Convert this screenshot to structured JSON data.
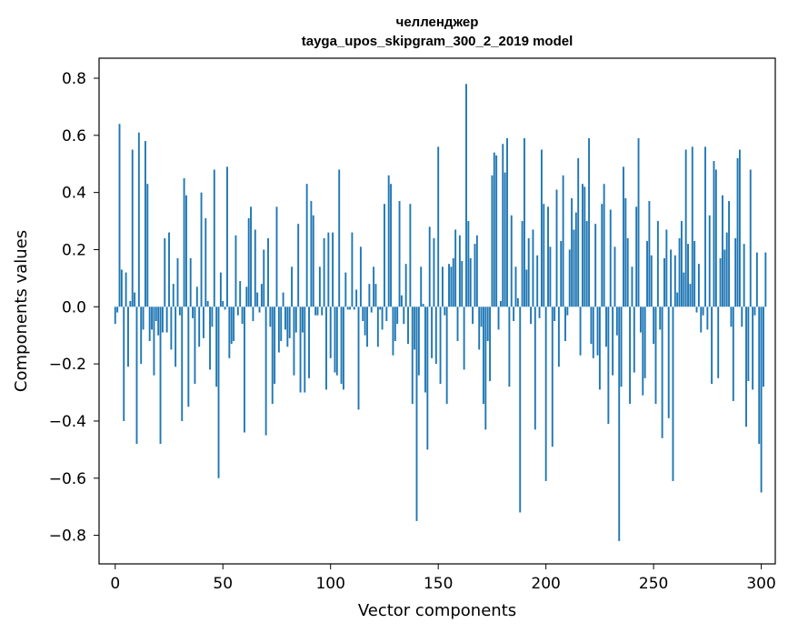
{
  "chart_data": {
    "type": "bar",
    "title": "челленджер",
    "subtitle": "tayga_upos_skipgram_300_2_2019 model",
    "xlabel": "Vector components",
    "ylabel": "Components values",
    "xlim": [
      -7.5,
      306.5
    ],
    "ylim": [
      -0.9,
      0.87
    ],
    "xticks": [
      0,
      50,
      100,
      150,
      200,
      250,
      300
    ],
    "xtick_labels": [
      "0",
      "50",
      "100",
      "150",
      "200",
      "250",
      "300"
    ],
    "yticks": [
      -0.8,
      -0.6,
      -0.4,
      -0.2,
      0.0,
      0.2,
      0.4,
      0.6,
      0.8
    ],
    "ytick_labels": [
      "−0.8",
      "−0.6",
      "−0.4",
      "−0.2",
      "0.0",
      "0.2",
      "0.4",
      "0.6",
      "0.8"
    ],
    "bar_color": "#1f77b4",
    "grid": false,
    "values": [
      -0.06,
      -0.02,
      0.64,
      0.13,
      -0.4,
      0.12,
      -0.21,
      0.02,
      0.55,
      0.05,
      -0.48,
      0.61,
      -0.2,
      -0.08,
      0.58,
      0.43,
      -0.12,
      -0.08,
      -0.24,
      -0.05,
      -0.1,
      -0.48,
      -0.09,
      0.24,
      -0.09,
      0.26,
      -0.15,
      0.08,
      -0.21,
      0.17,
      -0.03,
      -0.4,
      0.45,
      0.39,
      -0.35,
      0.17,
      -0.04,
      -0.27,
      0.07,
      -0.14,
      0.4,
      -0.11,
      0.31,
      0.02,
      -0.22,
      -0.07,
      0.48,
      -0.28,
      -0.6,
      0.12,
      0.02,
      -0.01,
      0.49,
      -0.18,
      -0.13,
      -0.12,
      0.25,
      -0.03,
      0.09,
      -0.06,
      -0.44,
      0.07,
      0.31,
      0.35,
      -0.05,
      0.27,
      0.05,
      -0.02,
      0.08,
      0.2,
      -0.45,
      0.24,
      -0.07,
      -0.34,
      -0.27,
      0.35,
      -0.16,
      -0.12,
      0.05,
      -0.08,
      -0.14,
      -0.11,
      0.14,
      -0.24,
      -0.09,
      0.29,
      -0.3,
      -0.09,
      -0.3,
      0.43,
      -0.25,
      0.37,
      0.32,
      -0.03,
      -0.03,
      0.14,
      -0.03,
      0.24,
      -0.29,
      0.26,
      -0.18,
      0.26,
      -0.23,
      -0.24,
      0.48,
      -0.27,
      -0.29,
      0.12,
      -0.01,
      -0.01,
      0.26,
      -0.01,
      0.06,
      -0.36,
      0.21,
      -0.05,
      -0.1,
      -0.14,
      0.08,
      -0.02,
      0.14,
      0.08,
      -0.14,
      -0.01,
      -0.08,
      0.36,
      -0.05,
      0.46,
      0.43,
      -0.17,
      -0.12,
      -0.06,
      0.37,
      0.04,
      -0.06,
      0.15,
      -0.13,
      0.36,
      -0.34,
      -0.15,
      -0.75,
      -0.24,
      0.14,
      0.01,
      -0.3,
      -0.5,
      0.28,
      -0.18,
      0.24,
      -0.2,
      0.56,
      -0.27,
      0.14,
      -0.03,
      -0.34,
      0.15,
      0.14,
      0.17,
      0.27,
      -0.12,
      0.25,
      0.16,
      -0.22,
      0.78,
      0.3,
      0.17,
      -0.06,
      0.22,
      0.25,
      -0.15,
      -0.07,
      -0.34,
      -0.43,
      -0.12,
      -0.26,
      0.46,
      0.54,
      0.53,
      -0.08,
      0.02,
      0.57,
      0.47,
      0.59,
      -0.28,
      0.32,
      -0.05,
      0.14,
      0.03,
      -0.72,
      0.3,
      0.59,
      0.13,
      0.24,
      -0.06,
      0.27,
      -0.43,
      0.18,
      -0.04,
      0.55,
      0.36,
      -0.61,
      0.35,
      0.21,
      -0.49,
      -0.05,
      0.41,
      -0.21,
      0.23,
      0.46,
      -0.12,
      -0.03,
      0.2,
      0.38,
      0.27,
      0.33,
      0.52,
      -0.17,
      0.43,
      0.42,
      0.3,
      0.59,
      -0.13,
      -0.18,
      0.29,
      -0.17,
      -0.29,
      0.36,
      0.43,
      -0.14,
      -0.41,
      0.34,
      -0.24,
      0.21,
      -0.1,
      -0.82,
      -0.28,
      0.49,
      0.38,
      0.24,
      -0.34,
      0.14,
      -0.23,
      0.35,
      0.59,
      -0.09,
      -0.31,
      -0.25,
      0.23,
      0.37,
      0.18,
      -0.13,
      -0.34,
      0.3,
      -0.08,
      -0.46,
      0.17,
      0.27,
      -0.39,
      0.2,
      -0.61,
      0.18,
      0.05,
      0.24,
      0.3,
      0.12,
      0.55,
      0.22,
      0.08,
      0.56,
      0.23,
      -0.02,
      0.15,
      -0.09,
      -0.03,
      0.56,
      -0.08,
      0.32,
      -0.27,
      0.51,
      0.48,
      -0.25,
      0.17,
      0.39,
      0.2,
      0.26,
      0.37,
      -0.07,
      -0.33,
      0.24,
      0.52,
      0.55,
      -0.07,
      0.22,
      -0.42,
      -0.26,
      0.48,
      -0.29,
      -0.03,
      0.19,
      -0.48,
      -0.65,
      -0.28,
      0.19
    ]
  }
}
